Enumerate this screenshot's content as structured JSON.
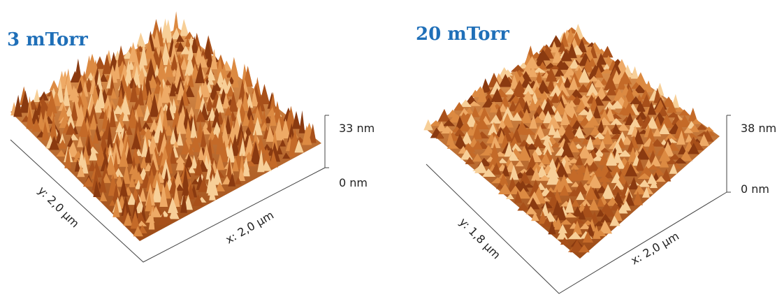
{
  "panels": [
    {
      "title": "3 mTorr",
      "z_top": "33 nm",
      "z_bottom": "0 nm",
      "x_label": "x: 2,0 µm",
      "y_label": "y: 2,0 µm"
    },
    {
      "title": "20 mTorr",
      "z_top": "38 nm",
      "z_bottom": "0 nm",
      "x_label": "x: 2,0 µm",
      "y_label": "y: 1,8 µm"
    }
  ]
}
